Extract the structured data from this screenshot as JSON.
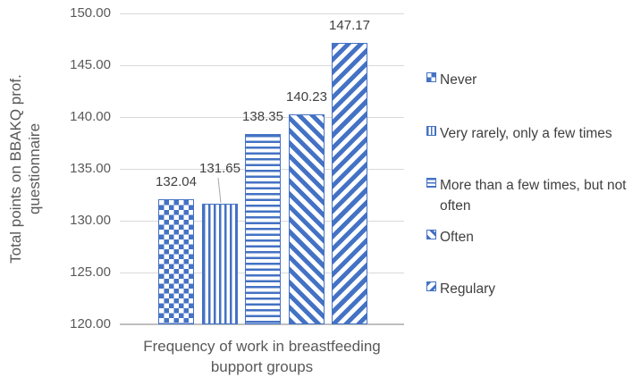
{
  "chart_data": {
    "type": "bar",
    "title": "",
    "categories": [
      "Never",
      "Very rarely, only a few times",
      "More than a few times, but not often",
      "Often",
      "Regulary"
    ],
    "values": [
      132.04,
      131.65,
      138.35,
      140.23,
      147.17
    ],
    "value_labels": [
      "132.04",
      "131.65",
      "138.35",
      "140.23",
      "147.17"
    ],
    "xlabel": "Frequency of work in breastfeeding bupport groups",
    "ylabel": "Total points on BBAKQ prof. questionnaire",
    "ylim": [
      120,
      150
    ],
    "ytick_step": 5,
    "yticks": [
      "150.00",
      "145.00",
      "140.00",
      "135.00",
      "130.00",
      "125.00",
      "120.00"
    ],
    "grid": true,
    "legend_position": "right",
    "bar_patterns": [
      "checker",
      "vertical-lines",
      "horizontal-lines",
      "diagonal-down",
      "diagonal-up"
    ],
    "colors": {
      "bar": "#4472C4",
      "gridline": "#D9D9D9",
      "axis_line": "#BFBFBF",
      "tick_text": "#595959",
      "label_text": "#404040"
    }
  },
  "xaxis_title": {
    "line1": "Frequency of work in breastfeeding",
    "line2": "bupport groups"
  },
  "yaxis_title": {
    "line1": "Total points on BBAKQ prof.",
    "line2": "questionnaire"
  },
  "legend": {
    "items": [
      {
        "label": "Never",
        "pattern": "checker"
      },
      {
        "label": "Very rarely, only a few times",
        "pattern": "vertical-lines"
      },
      {
        "label": "More than a few times, but not often",
        "pattern": "horizontal-lines"
      },
      {
        "label": "Often",
        "pattern": "diagonal-down"
      },
      {
        "label": "Regulary",
        "pattern": "diagonal-up"
      }
    ]
  }
}
